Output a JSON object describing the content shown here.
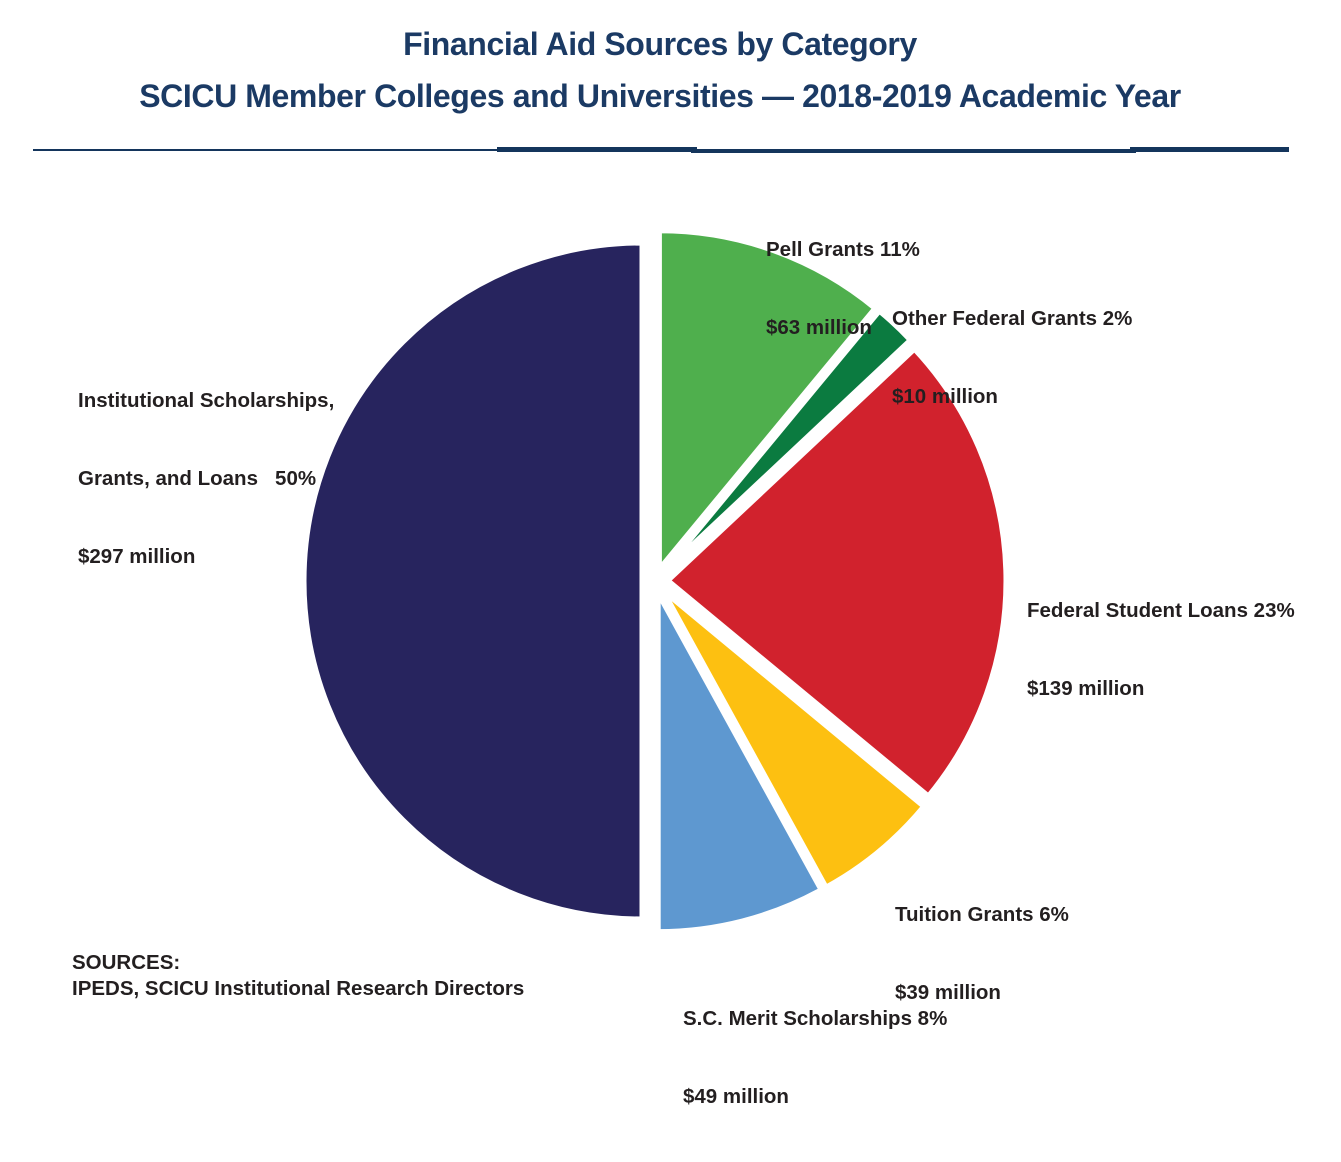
{
  "page": {
    "background": "#ffffff",
    "title_color": "#1b3a64",
    "text_color": "#231f20"
  },
  "title": {
    "line1": "Financial Aid Sources by Category",
    "line2": "SCICU Member Colleges and Universities — 2018-2019 Academic Year"
  },
  "sources": {
    "line1": "SOURCES:",
    "line2": "IPEDS, SCICU Institutional Research Directors"
  },
  "chart_data": {
    "type": "pie",
    "title": "Financial Aid Sources by Category",
    "subtitle": "SCICU Member Colleges and Universities — 2018-2019 Academic Year",
    "units": "percent of total; dollar amounts in millions",
    "start_angle_deg": 0,
    "direction": "clockwise",
    "legend_position": "callouts-around-pie",
    "slices": [
      {
        "id": "pell-grants",
        "label": "Pell Grants",
        "percent": 11,
        "value_millions": 63,
        "amount": "$63 million",
        "color": "#4faf4d",
        "line1": "Pell Grants 11%",
        "line2": "$63 million"
      },
      {
        "id": "other-federal-grants",
        "label": "Other Federal Grants",
        "percent": 2,
        "value_millions": 10,
        "amount": "$10 million",
        "color": "#0b7b40",
        "line1": "Other Federal Grants 2%",
        "line2": "$10 million"
      },
      {
        "id": "federal-student-loans",
        "label": "Federal Student Loans",
        "percent": 23,
        "value_millions": 139,
        "amount": "$139 million",
        "color": "#d1222d",
        "line1": "Federal Student Loans 23%",
        "line2": "$139 million"
      },
      {
        "id": "tuition-grants",
        "label": "Tuition Grants",
        "percent": 6,
        "value_millions": 39,
        "amount": "$39 million",
        "color": "#fdc011",
        "line1": "Tuition Grants 6%",
        "line2": "$39 million"
      },
      {
        "id": "sc-merit-scholarships",
        "label": "S.C. Merit Scholarships",
        "percent": 8,
        "value_millions": 49,
        "amount": "$49 million",
        "color": "#5e98d0",
        "line1": "S.C. Merit Scholarships 8%",
        "line2": "$49 million"
      },
      {
        "id": "institutional-scholarships-grants-loans",
        "label": "Institutional Scholarships, Grants, and Loans",
        "percent": 50,
        "value_millions": 297,
        "amount": "$297 million",
        "color": "#27245e",
        "line1": "Institutional Scholarships,",
        "line2": "Grants, and Loans   50%",
        "line3": "$297 million"
      }
    ]
  }
}
